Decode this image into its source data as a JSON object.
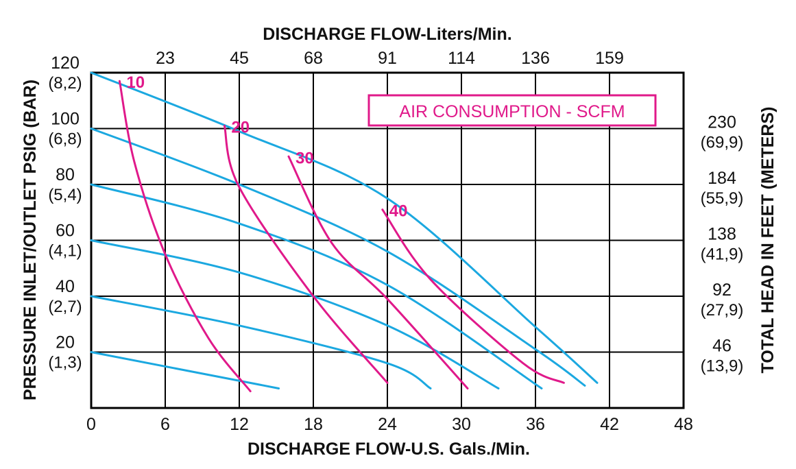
{
  "chart_data": {
    "type": "line",
    "title": "",
    "legend_title": "AIR CONSUMPTION - SCFM",
    "legend_placement": "top-right",
    "grid": true,
    "x_axis_bottom": {
      "label": "DISCHARGE FLOW-U.S. Gals./Min.",
      "range": [
        0,
        48
      ],
      "ticks": [
        "0",
        "6",
        "12",
        "18",
        "24",
        "30",
        "36",
        "42",
        "48"
      ]
    },
    "x_axis_top": {
      "label": "DISCHARGE FLOW-Liters/Min.",
      "ticks": [
        "23",
        "45",
        "68",
        "91",
        "114",
        "136",
        "159"
      ]
    },
    "y_axis_left": {
      "label": "PRESSURE INLET/OUTLET PSIG (BAR)",
      "range": [
        0,
        120
      ],
      "ticks": [
        {
          "value": 20,
          "primary": "20",
          "secondary": "(1,3)"
        },
        {
          "value": 40,
          "primary": "40",
          "secondary": "(2,7)"
        },
        {
          "value": 60,
          "primary": "60",
          "secondary": "(4,1)"
        },
        {
          "value": 80,
          "primary": "80",
          "secondary": "(5,4)"
        },
        {
          "value": 100,
          "primary": "100",
          "secondary": "(6,8)"
        },
        {
          "value": 120,
          "primary": "120",
          "secondary": "(8,2)"
        }
      ]
    },
    "y_axis_right": {
      "label": "TOTAL HEAD IN FEET (METERS)",
      "ticks": [
        {
          "value": 20,
          "primary": "46",
          "secondary": "(13,9)"
        },
        {
          "value": 40,
          "primary": "92",
          "secondary": "(27,9)"
        },
        {
          "value": 60,
          "primary": "138",
          "secondary": "(41,9)"
        },
        {
          "value": 80,
          "primary": "184",
          "secondary": "(55,9)"
        },
        {
          "value": 100,
          "primary": "230",
          "secondary": "(69,9)"
        }
      ]
    },
    "pressure_curves": [
      {
        "start_psig": 20,
        "points": [
          [
            0,
            20
          ],
          [
            15.2,
            7
          ]
        ]
      },
      {
        "start_psig": 40,
        "points": [
          [
            0,
            40
          ],
          [
            12,
            29.5
          ],
          [
            24,
            16
          ],
          [
            27.5,
            7
          ]
        ]
      },
      {
        "start_psig": 60,
        "points": [
          [
            0,
            60
          ],
          [
            12,
            48.5
          ],
          [
            24,
            29.5
          ],
          [
            33,
            7
          ]
        ]
      },
      {
        "start_psig": 80,
        "points": [
          [
            0,
            80
          ],
          [
            12,
            66
          ],
          [
            24,
            44
          ],
          [
            36.5,
            7
          ]
        ]
      },
      {
        "start_psig": 100,
        "points": [
          [
            0,
            100
          ],
          [
            12,
            80
          ],
          [
            24,
            56
          ],
          [
            36,
            21
          ],
          [
            40,
            8
          ]
        ]
      },
      {
        "start_psig": 120,
        "points": [
          [
            0,
            120
          ],
          [
            12,
            99
          ],
          [
            24,
            75
          ],
          [
            36,
            29
          ],
          [
            41,
            9
          ]
        ]
      }
    ],
    "air_series": [
      {
        "name": "10",
        "points": [
          [
            2.3,
            117
          ],
          [
            3.5,
            88
          ],
          [
            6,
            55
          ],
          [
            9.5,
            25
          ],
          [
            12.9,
            6
          ]
        ]
      },
      {
        "name": "20",
        "points": [
          [
            10.8,
            101
          ],
          [
            12,
            79
          ],
          [
            18,
            40
          ],
          [
            24,
            9
          ]
        ]
      },
      {
        "name": "30",
        "points": [
          [
            16,
            90
          ],
          [
            19.5,
            59
          ],
          [
            24,
            39
          ],
          [
            30.5,
            7
          ]
        ]
      },
      {
        "name": "40",
        "points": [
          [
            23.6,
            71
          ],
          [
            27.5,
            46
          ],
          [
            35,
            16
          ],
          [
            38.3,
            9
          ]
        ]
      }
    ]
  }
}
